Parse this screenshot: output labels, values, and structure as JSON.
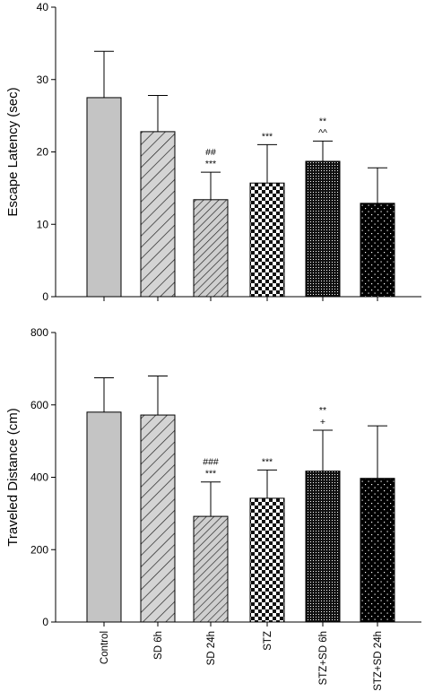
{
  "chart_data": [
    {
      "type": "bar",
      "categories": [
        "Control",
        "SD 6h",
        "SD 24h",
        "STZ",
        "STZ+SD 6h",
        "STZ+SD 24h"
      ],
      "values": [
        27.5,
        22.8,
        13.4,
        15.7,
        18.7,
        12.9
      ],
      "errors": [
        6.4,
        5.0,
        3.8,
        5.3,
        2.8,
        4.9
      ],
      "annotations": [
        [],
        [],
        [
          "##",
          "***"
        ],
        [
          "***"
        ],
        [
          "**",
          "^^"
        ],
        []
      ],
      "ylabel": "Escape Latency (sec)",
      "ylim": [
        0,
        40
      ],
      "yticks": [
        0,
        10,
        20,
        30,
        40
      ],
      "bar_patterns": [
        "solid-gray",
        "diagonal-lines",
        "dense-diagonal-lines",
        "checkerboard",
        "fine-dots-black",
        "sparse-dots-black"
      ],
      "grid": false
    },
    {
      "type": "bar",
      "categories": [
        "Control",
        "SD 6h",
        "SD 24h",
        "STZ",
        "STZ+SD 6h",
        "STZ+SD 24h"
      ],
      "values": [
        580,
        572,
        292,
        342,
        417,
        397
      ],
      "errors": [
        95,
        108,
        95,
        78,
        113,
        145
      ],
      "annotations": [
        [],
        [],
        [
          "###",
          "***"
        ],
        [
          "***"
        ],
        [
          "**",
          "+"
        ],
        []
      ],
      "ylabel": "Traveled Distance (cm)",
      "ylim": [
        0,
        800
      ],
      "yticks": [
        0,
        200,
        400,
        600,
        800
      ],
      "bar_patterns": [
        "solid-gray",
        "diagonal-lines",
        "dense-diagonal-lines",
        "checkerboard",
        "fine-dots-black",
        "sparse-dots-black"
      ],
      "grid": false
    }
  ]
}
